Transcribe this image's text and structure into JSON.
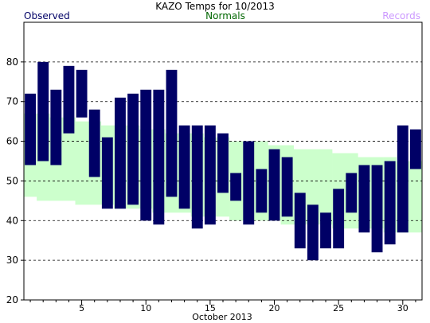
{
  "chart_data": {
    "type": "bar",
    "title": "KAZO Temps for  10/2013",
    "xlabel": "October 2013",
    "ylabel": "",
    "legend": {
      "observed": "Observed",
      "normals": "Normals",
      "records": "Records"
    },
    "colors": {
      "observed": "#000066",
      "normals_fill": "#ccffcc",
      "normals_text": "#006600",
      "records_text": "#cc99ff",
      "grid": "#000000"
    },
    "xlim": [
      0.5,
      31.5
    ],
    "ylim": [
      20,
      90
    ],
    "x_ticks": [
      5,
      10,
      15,
      20,
      25,
      30
    ],
    "y_ticks": [
      20,
      30,
      40,
      50,
      60,
      70,
      80
    ],
    "grid_y": [
      30,
      40,
      50,
      60,
      70,
      80
    ],
    "days": [
      1,
      2,
      3,
      4,
      5,
      6,
      7,
      8,
      9,
      10,
      11,
      12,
      13,
      14,
      15,
      16,
      17,
      18,
      19,
      20,
      21,
      22,
      23,
      24,
      25,
      26,
      27,
      28,
      29,
      30,
      31
    ],
    "series": [
      {
        "name": "Observed",
        "high": [
          72,
          80,
          73,
          79,
          78,
          68,
          61,
          71,
          72,
          73,
          73,
          78,
          64,
          64,
          64,
          62,
          52,
          60,
          53,
          58,
          56,
          47,
          44,
          42,
          48,
          52,
          54,
          54,
          55,
          64,
          63
        ],
        "low": [
          54,
          55,
          54,
          62,
          66,
          51,
          43,
          43,
          44,
          40,
          39,
          46,
          43,
          38,
          39,
          47,
          45,
          39,
          42,
          40,
          41,
          33,
          30,
          33,
          33,
          42,
          37,
          32,
          34,
          37,
          53
        ]
      },
      {
        "name": "Normals",
        "high": [
          67,
          67,
          66,
          66,
          65,
          65,
          64,
          64,
          64,
          63,
          63,
          62,
          62,
          62,
          61,
          61,
          60,
          60,
          60,
          59,
          59,
          58,
          58,
          58,
          57,
          57,
          56,
          56,
          56,
          55,
          55
        ],
        "low": [
          46,
          45,
          45,
          45,
          44,
          44,
          44,
          43,
          43,
          43,
          42,
          42,
          42,
          41,
          41,
          41,
          40,
          40,
          40,
          40,
          39,
          39,
          39,
          39,
          38,
          38,
          38,
          38,
          37,
          37,
          37
        ]
      }
    ]
  }
}
